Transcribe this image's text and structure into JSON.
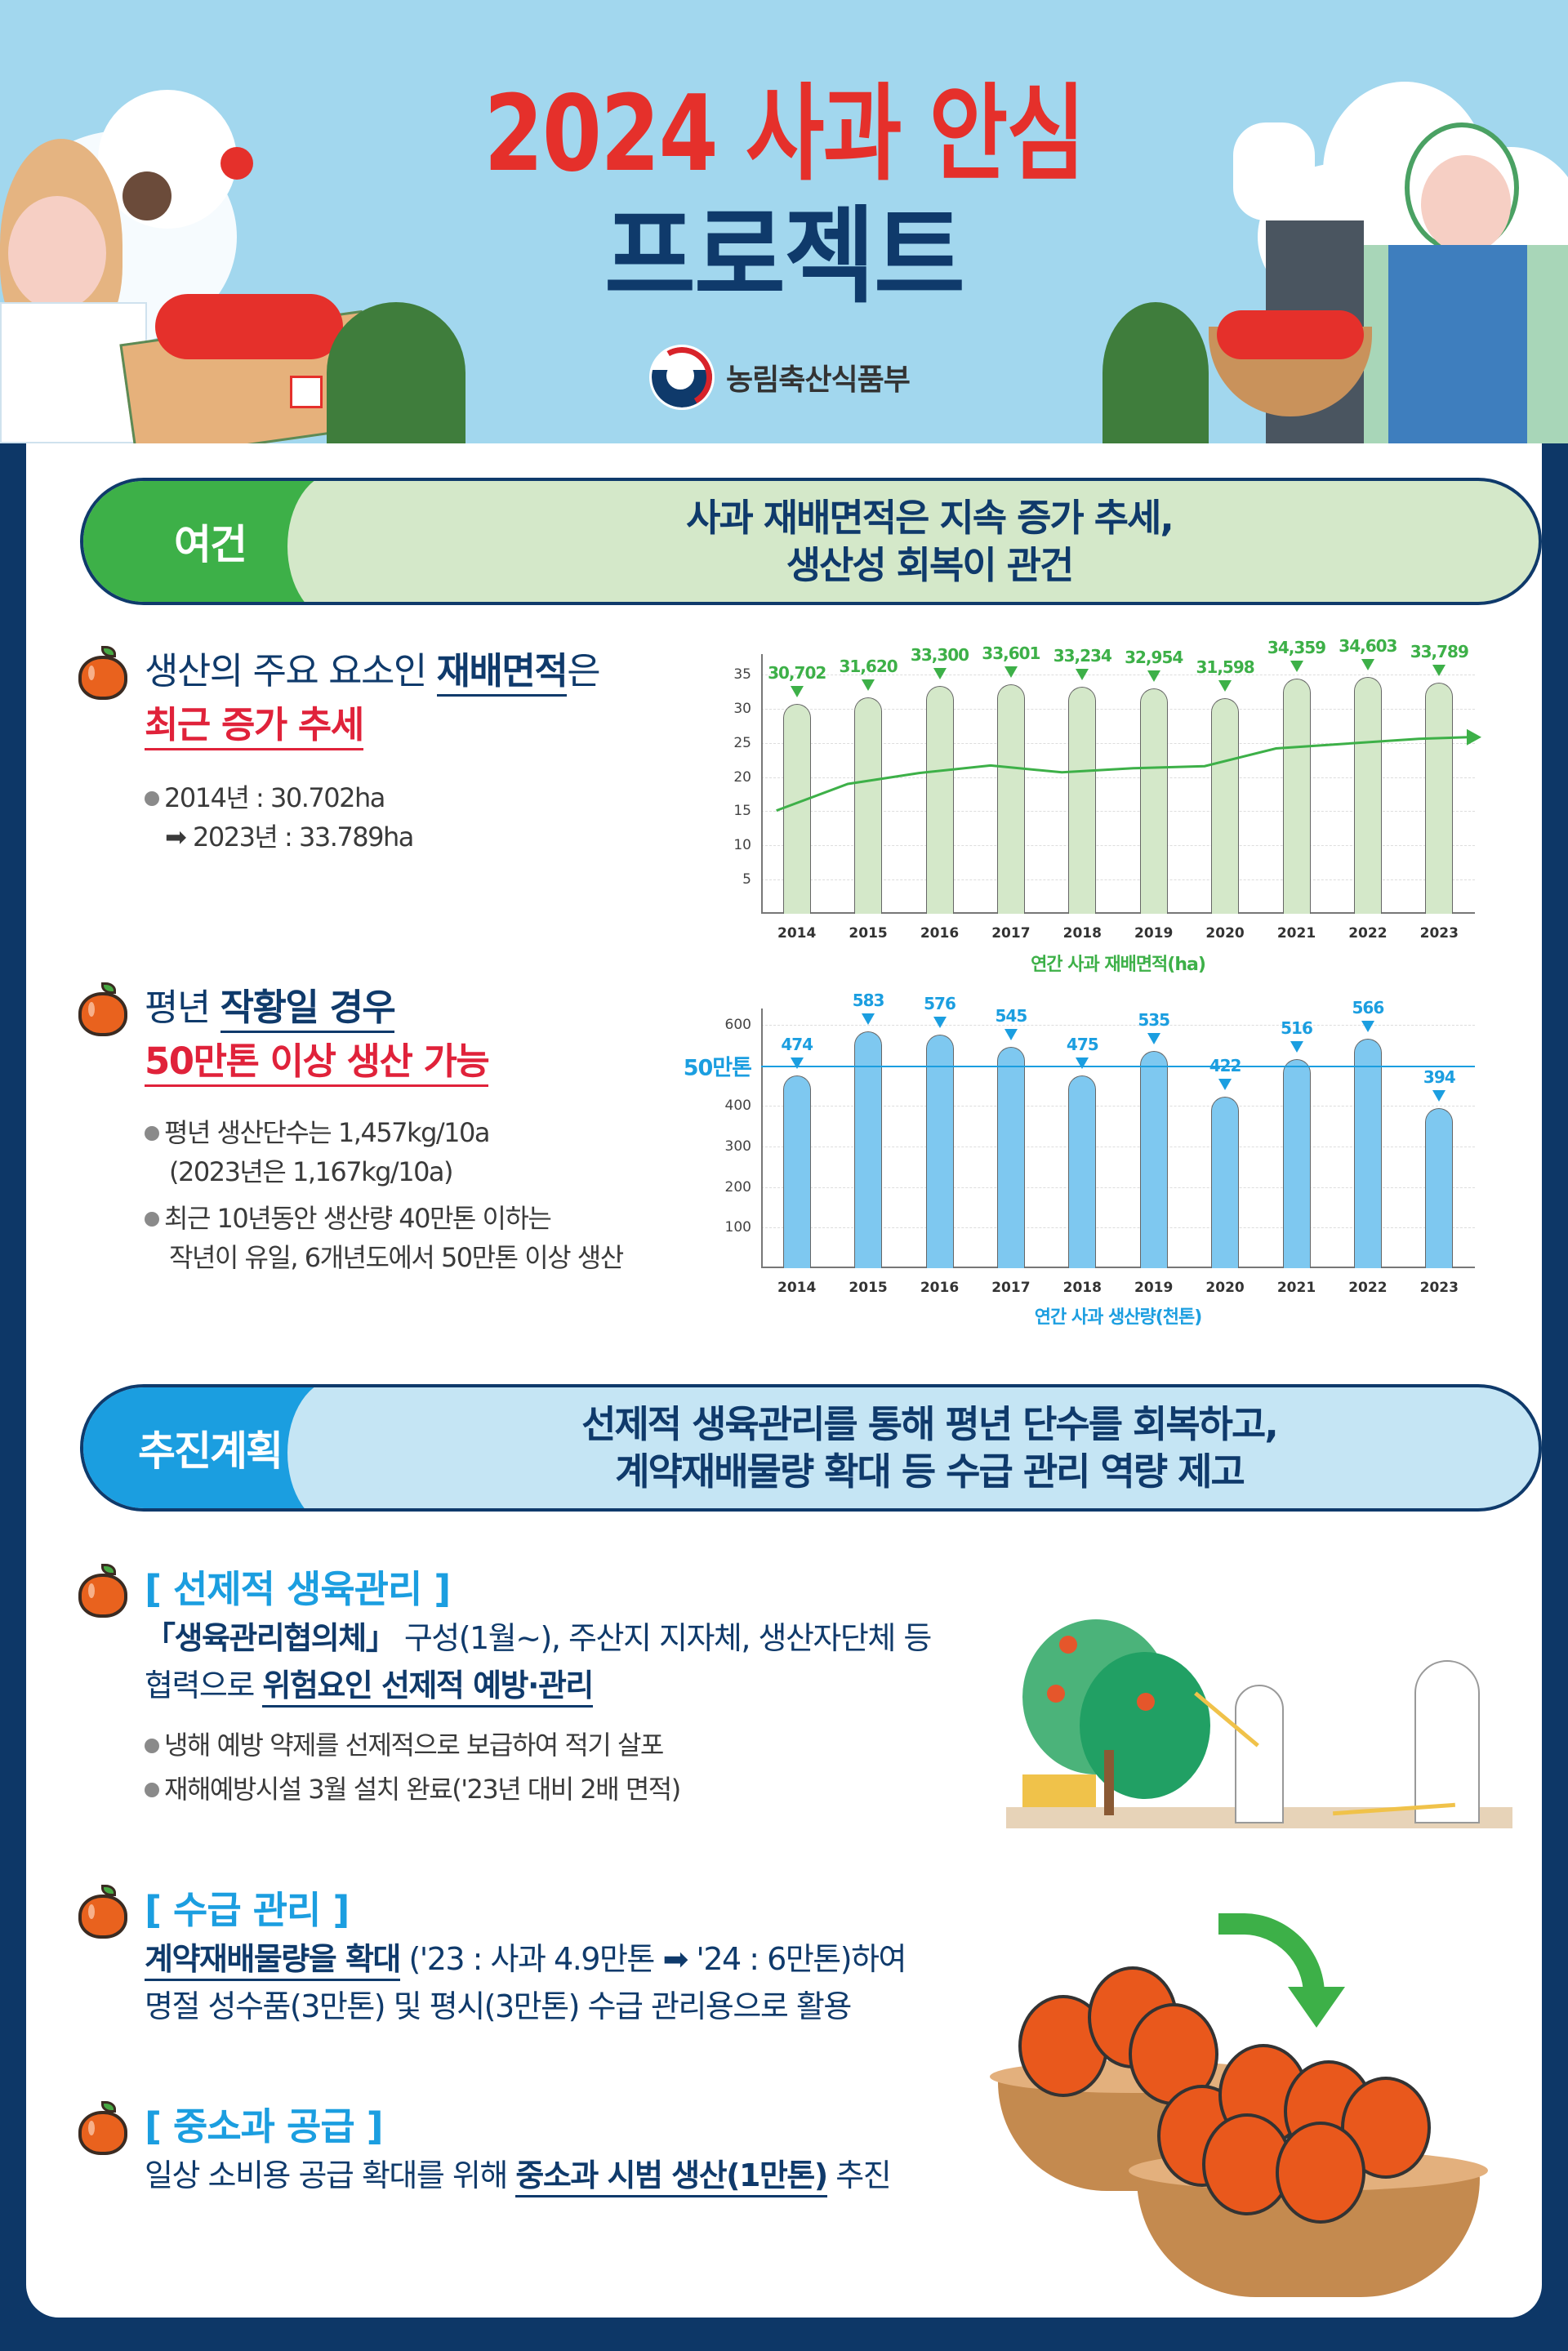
{
  "header": {
    "title_line1": "2024 사과 안심",
    "title_line2": "프로젝트",
    "ministry_name": "농림축산식품부",
    "logo": "korea-government-emblem-icon"
  },
  "colors": {
    "navy": "#0f3a6b",
    "red": "#e0223a",
    "green": "#3db048",
    "light_green": "#d4e8c9",
    "blue": "#1b9ee0",
    "light_blue": "#c5e5f4",
    "sky": "#a2d7ee"
  },
  "section1": {
    "tag": "여건",
    "message_line1": "사과 재배면적은 지속 증가 추세,",
    "message_line2": "생산성 회복이 관건",
    "point1": {
      "prefix": "생산의 주요 요소인 ",
      "highlight": "재배면적",
      "suffix": "은",
      "line2": "최근 증가 추세",
      "bullet_line1": "2014년 : 30.702ha",
      "bullet_line2": "➡ 2023년 : 33.789ha"
    },
    "point2": {
      "prefix": "평년 ",
      "highlight": "작황일 경우",
      "line2": "50만톤 이상 생산 가능",
      "bullet1_line1": "평년 생산단수는 1,457kg/10a",
      "bullet1_line2": "(2023년은 1,167kg/10a)",
      "bullet2_line1": "최근 10년동안 생산량 40만톤 이하는",
      "bullet2_line2": "작년이 유일, 6개년도에서 50만톤 이상 생산"
    }
  },
  "section2": {
    "tag": "추진계획",
    "message_line1": "선제적 생육관리를 통해 평년 단수를 회복하고,",
    "message_line2": "계약재배물량 확대 등 수급 관리 역량 제고",
    "item1": {
      "heading": "[ 선제적 생육관리 ]",
      "bold1": "「생육관리협의체」",
      "text1": " 구성(1월~), 주산지 지자체, 생산자단체 등",
      "text2": "협력으로 ",
      "bold2": "위험요인 선제적 예방·관리",
      "bullet1": "냉해 예방 약제를 선제적으로 보급하여 적기 살포",
      "bullet2": "재해예방시설 3월 설치 완료('23년 대비 2배 면적)"
    },
    "item2": {
      "heading": "[ 수급 관리 ]",
      "bold1": "계약재배물량을 확대",
      "text1": " ('23 : 사과 4.9만톤 ➡ '24 : 6만톤)하여",
      "text2": "명절 성수품(3만톤) 및 평시(3만톤) 수급 관리용으로 활용"
    },
    "item3": {
      "heading": "[ 중소과 공급 ]",
      "text1": "일상 소비용 공급 확대를 위해 ",
      "bold1": "중소과 시범 생산(1만톤)",
      "text2": " 추진"
    }
  },
  "chart_data": [
    {
      "type": "bar",
      "title": "",
      "xlabel": "연간 사과 재배면적(ha)",
      "ylabel": "",
      "categories": [
        "2014",
        "2015",
        "2016",
        "2017",
        "2018",
        "2019",
        "2020",
        "2021",
        "2022",
        "2023"
      ],
      "values": [
        30702,
        31620,
        33300,
        33601,
        33234,
        32954,
        31598,
        34359,
        34603,
        33789
      ],
      "value_labels": [
        "30,702",
        "31,620",
        "33,300",
        "33,601",
        "33,234",
        "32,954",
        "31,598",
        "34,359",
        "34,603",
        "33,789"
      ],
      "y_ticks": [
        5,
        10,
        15,
        20,
        25,
        30,
        35
      ],
      "ylim": [
        0,
        38
      ],
      "y_unit_note": "thousand ha",
      "grid": true,
      "trend_line": {
        "type": "line",
        "values": [
          15.1,
          19.0,
          20.6,
          21.7,
          20.7,
          21.3,
          21.6,
          24.2,
          24.9,
          25.6
        ],
        "arrow": true
      },
      "bar_color": "#d4e8c9",
      "label_color": "#3db048"
    },
    {
      "type": "bar",
      "title": "",
      "xlabel": "연간 사과 생산량(천톤)",
      "ylabel": "",
      "categories": [
        "2014",
        "2015",
        "2016",
        "2017",
        "2018",
        "2019",
        "2020",
        "2021",
        "2022",
        "2023"
      ],
      "values": [
        474,
        583,
        576,
        545,
        475,
        535,
        422,
        516,
        566,
        394
      ],
      "value_labels": [
        "474",
        "583",
        "576",
        "545",
        "475",
        "535",
        "422",
        "516",
        "566",
        "394"
      ],
      "y_ticks": [
        100,
        200,
        300,
        400,
        600
      ],
      "ylim": [
        0,
        640
      ],
      "grid": true,
      "reference_line": {
        "value": 500,
        "label": "50만톤"
      },
      "bar_color": "#7ec8f0",
      "label_color": "#1b9ee0"
    }
  ]
}
